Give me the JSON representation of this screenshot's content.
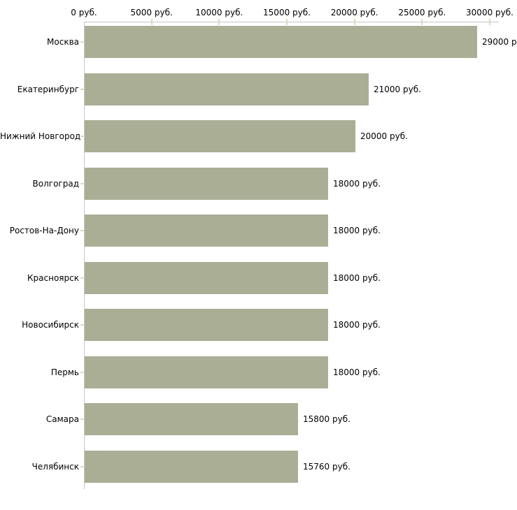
{
  "chart_data": {
    "type": "bar",
    "orientation": "horizontal",
    "title": "",
    "xlabel": "",
    "ylabel": "",
    "legend": false,
    "grid": false,
    "axis_position": "top",
    "xlim": [
      0,
      30000
    ],
    "categories": [
      "Москва",
      "Екатеринбург",
      "Нижний Новгород",
      "Волгоград",
      "Ростов-На-Дону",
      "Красноярск",
      "Новосибирск",
      "Пермь",
      "Самара",
      "Челябинск"
    ],
    "values": [
      29000,
      21000,
      20000,
      18000,
      18000,
      18000,
      18000,
      18000,
      15800,
      15760
    ],
    "value_labels": [
      "29000 р",
      "21000 руб.",
      "20000 руб.",
      "18000 руб.",
      "18000 руб.",
      "18000 руб.",
      "18000 руб.",
      "18000 руб.",
      "15800 руб.",
      "15760 руб."
    ],
    "x_axis": {
      "tick_values": [
        0,
        5000,
        10000,
        15000,
        20000,
        25000,
        30000
      ],
      "tick_labels": [
        "0 руб.",
        "5000 руб.",
        "10000 руб.",
        "15000 руб.",
        "20000 руб.",
        "25000 руб.",
        "30000 руб."
      ]
    },
    "colors": {
      "bar": "#a9ae95",
      "axis": "#c6c6c6",
      "tick": "#d9dac1",
      "text": "#000000",
      "background": "#ffffff"
    }
  }
}
